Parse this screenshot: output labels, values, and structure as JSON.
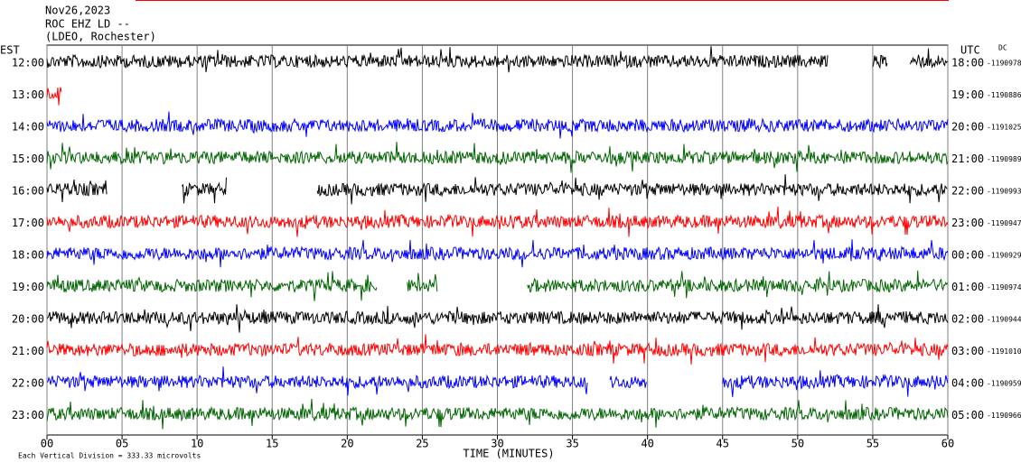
{
  "chart_data": {
    "type": "helicorder",
    "title_lines": [
      "Nov26,2023",
      "ROC EHZ LD --",
      "(LDEO, Rochester)"
    ],
    "left_axis_title": "EST",
    "right_axis_title": "UTC",
    "dc_title": "DC",
    "xlabel": "TIME (MINUTES)",
    "footer": "Each Vertical Division =   333.33 microvolts",
    "xlim": [
      0,
      60
    ],
    "xticks": [
      {
        "value": 0,
        "label": "00"
      },
      {
        "value": 5,
        "label": "05"
      },
      10,
      15,
      20,
      25,
      30,
      35,
      40,
      45,
      50,
      55,
      60
    ],
    "grid": true,
    "rows": [
      {
        "est": "12:00",
        "utc": "18:00",
        "dc": "-1190978",
        "color": "#000000",
        "segments": [
          [
            0,
            52
          ],
          [
            55,
            56
          ],
          [
            57.5,
            60
          ]
        ]
      },
      {
        "est": "13:00",
        "utc": "19:00",
        "dc": "-1190886",
        "color": "#ff0000",
        "segments": [
          [
            0,
            1
          ]
        ]
      },
      {
        "est": "14:00",
        "utc": "20:00",
        "dc": "-1191025",
        "color": "#0000ff",
        "segments": [
          [
            0,
            60
          ]
        ]
      },
      {
        "est": "15:00",
        "utc": "21:00",
        "dc": "-1190989",
        "color": "#006400",
        "segments": [
          [
            0,
            60
          ]
        ]
      },
      {
        "est": "16:00",
        "utc": "22:00",
        "dc": "-1190993",
        "color": "#000000",
        "segments": [
          [
            0,
            4
          ],
          [
            9,
            12
          ],
          [
            18,
            60
          ]
        ]
      },
      {
        "est": "17:00",
        "utc": "23:00",
        "dc": "-1190947",
        "color": "#ff0000",
        "segments": [
          [
            0,
            60
          ]
        ]
      },
      {
        "est": "18:00",
        "utc": "00:00",
        "dc": "-1190929",
        "color": "#0000ff",
        "segments": [
          [
            0,
            60
          ]
        ]
      },
      {
        "est": "19:00",
        "utc": "01:00",
        "dc": "-1190974",
        "color": "#006400",
        "segments": [
          [
            0,
            22
          ],
          [
            24,
            26
          ],
          [
            32,
            60
          ]
        ]
      },
      {
        "est": "20:00",
        "utc": "02:00",
        "dc": "-1190944",
        "color": "#000000",
        "segments": [
          [
            0,
            60
          ]
        ]
      },
      {
        "est": "21:00",
        "utc": "03:00",
        "dc": "-1191010",
        "color": "#ff0000",
        "segments": [
          [
            0,
            60
          ]
        ]
      },
      {
        "est": "22:00",
        "utc": "04:00",
        "dc": "-1190959",
        "color": "#0000ff",
        "segments": [
          [
            0,
            36
          ],
          [
            37.5,
            40
          ],
          [
            45,
            60
          ]
        ]
      },
      {
        "est": "23:00",
        "utc": "05:00",
        "dc": "-1190966",
        "color": "#006400",
        "segments": [
          [
            0,
            60
          ]
        ]
      }
    ]
  }
}
